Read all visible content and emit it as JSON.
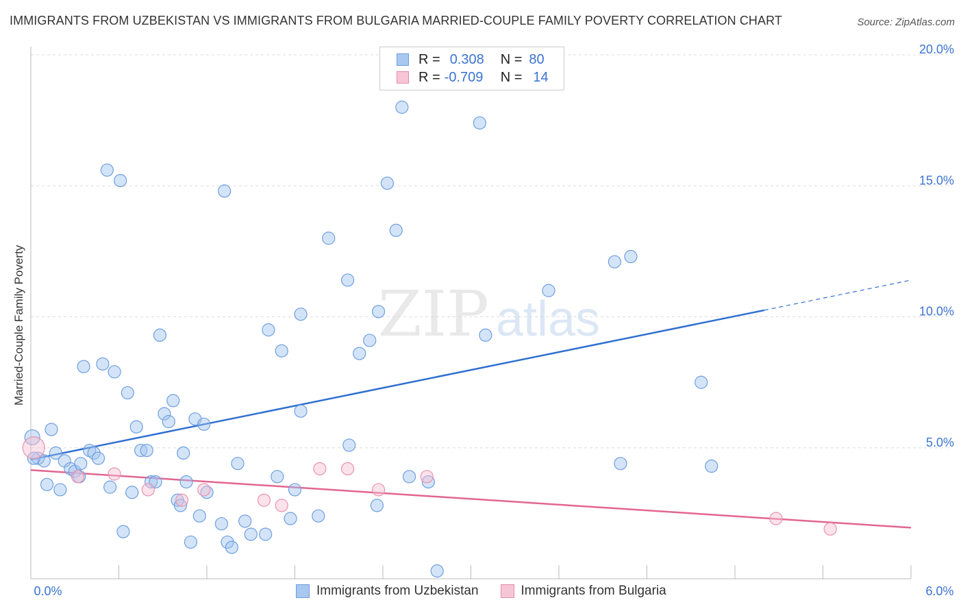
{
  "title": "IMMIGRANTS FROM UZBEKISTAN VS IMMIGRANTS FROM BULGARIA MARRIED-COUPLE FAMILY POVERTY CORRELATION CHART",
  "source": "Source: ZipAtlas.com",
  "watermark": {
    "zip": "ZIP",
    "atlas": "atlas"
  },
  "legend": {
    "rows": [
      {
        "r_label": "R =",
        "r_value": "0.308",
        "n_label": "N =",
        "n_value": "80",
        "color": "#a9c8f0",
        "border": "#6b9be0"
      },
      {
        "r_label": "R =",
        "r_value": "-0.709",
        "n_label": "N =",
        "n_value": "14",
        "color": "#f7c6d6",
        "border": "#e58aa8"
      }
    ]
  },
  "colors": {
    "series1_fill": "rgba(160,196,240,0.45)",
    "series1_stroke": "#6e9fe0",
    "series1_line": "#2f6fd0",
    "series2_fill": "rgba(247,190,210,0.45)",
    "series2_stroke": "#e892b0",
    "series2_line": "#e36592",
    "axis_text": "#3b73d1",
    "grid": "#dcdcdc"
  },
  "chart_data": {
    "type": "scatter",
    "title": "IMMIGRANTS FROM UZBEKISTAN VS IMMIGRANTS FROM BULGARIA MARRIED-COUPLE FAMILY POVERTY CORRELATION CHART",
    "xlabel": "",
    "ylabel": "Married-Couple Family Poverty",
    "xlim": [
      0,
      6
    ],
    "ylim": [
      0,
      20
    ],
    "x_tick_labels": [
      "0.0%",
      "6.0%"
    ],
    "y_ticks": [
      5,
      10,
      15,
      20
    ],
    "y_tick_labels": [
      "5.0%",
      "10.0%",
      "15.0%",
      "20.0%"
    ],
    "series": [
      {
        "name": "Immigrants from Uzbekistan",
        "points": [
          [
            0.01,
            5.4
          ],
          [
            0.05,
            4.6
          ],
          [
            0.09,
            4.5
          ],
          [
            0.14,
            5.7
          ],
          [
            0.17,
            4.8
          ],
          [
            0.11,
            3.6
          ],
          [
            0.2,
            3.4
          ],
          [
            0.23,
            4.5
          ],
          [
            0.27,
            4.2
          ],
          [
            0.3,
            4.1
          ],
          [
            0.33,
            3.9
          ],
          [
            0.34,
            4.4
          ],
          [
            0.36,
            8.1
          ],
          [
            0.4,
            4.9
          ],
          [
            0.43,
            4.8
          ],
          [
            0.46,
            4.6
          ],
          [
            0.49,
            8.2
          ],
          [
            0.52,
            15.6
          ],
          [
            0.54,
            3.5
          ],
          [
            0.57,
            7.9
          ],
          [
            0.61,
            15.2
          ],
          [
            0.63,
            1.8
          ],
          [
            0.66,
            7.1
          ],
          [
            0.69,
            3.3
          ],
          [
            0.72,
            5.8
          ],
          [
            0.75,
            4.9
          ],
          [
            0.79,
            4.9
          ],
          [
            0.82,
            3.7
          ],
          [
            0.85,
            3.7
          ],
          [
            0.88,
            9.3
          ],
          [
            0.91,
            6.3
          ],
          [
            0.94,
            6.0
          ],
          [
            0.97,
            6.8
          ],
          [
            1.0,
            3.0
          ],
          [
            1.02,
            2.8
          ],
          [
            1.04,
            4.8
          ],
          [
            1.06,
            3.7
          ],
          [
            1.09,
            1.4
          ],
          [
            1.12,
            6.1
          ],
          [
            1.15,
            2.4
          ],
          [
            1.18,
            5.9
          ],
          [
            1.2,
            3.3
          ],
          [
            1.3,
            2.1
          ],
          [
            1.32,
            14.8
          ],
          [
            1.34,
            1.4
          ],
          [
            1.37,
            1.2
          ],
          [
            1.41,
            4.4
          ],
          [
            1.46,
            2.2
          ],
          [
            1.5,
            1.7
          ],
          [
            1.6,
            1.7
          ],
          [
            1.62,
            9.5
          ],
          [
            1.68,
            3.9
          ],
          [
            1.71,
            8.7
          ],
          [
            1.77,
            2.3
          ],
          [
            1.8,
            3.4
          ],
          [
            1.84,
            10.1
          ],
          [
            1.84,
            6.4
          ],
          [
            1.96,
            2.4
          ],
          [
            2.03,
            13.0
          ],
          [
            2.16,
            11.4
          ],
          [
            2.17,
            5.1
          ],
          [
            2.24,
            8.6
          ],
          [
            2.31,
            9.1
          ],
          [
            2.36,
            2.8
          ],
          [
            2.37,
            10.2
          ],
          [
            2.43,
            15.1
          ],
          [
            2.49,
            13.3
          ],
          [
            2.53,
            18.0
          ],
          [
            2.58,
            3.9
          ],
          [
            2.71,
            3.7
          ],
          [
            2.77,
            0.3
          ],
          [
            3.06,
            17.4
          ],
          [
            3.1,
            9.3
          ],
          [
            3.53,
            11.0
          ],
          [
            3.98,
            12.1
          ],
          [
            4.02,
            4.4
          ],
          [
            4.09,
            12.3
          ],
          [
            4.57,
            7.5
          ],
          [
            4.64,
            4.3
          ],
          [
            0.02,
            4.6
          ]
        ],
        "trend": {
          "x0": 0,
          "y0": 4.55,
          "x1": 5.0,
          "y1": 10.25,
          "dash_to_x": 6.0,
          "dash_to_y": 11.4
        }
      },
      {
        "name": "Immigrants from Bulgaria",
        "points": [
          [
            0.02,
            5.0
          ],
          [
            0.32,
            3.9
          ],
          [
            0.57,
            4.0
          ],
          [
            0.8,
            3.4
          ],
          [
            1.03,
            3.0
          ],
          [
            1.18,
            3.4
          ],
          [
            1.59,
            3.0
          ],
          [
            1.71,
            2.8
          ],
          [
            1.97,
            4.2
          ],
          [
            2.16,
            4.2
          ],
          [
            2.37,
            3.4
          ],
          [
            2.7,
            3.9
          ],
          [
            5.08,
            2.3
          ],
          [
            5.45,
            1.9
          ]
        ],
        "trend": {
          "x0": 0,
          "y0": 4.15,
          "x1": 6.0,
          "y1": 1.95
        }
      }
    ]
  }
}
